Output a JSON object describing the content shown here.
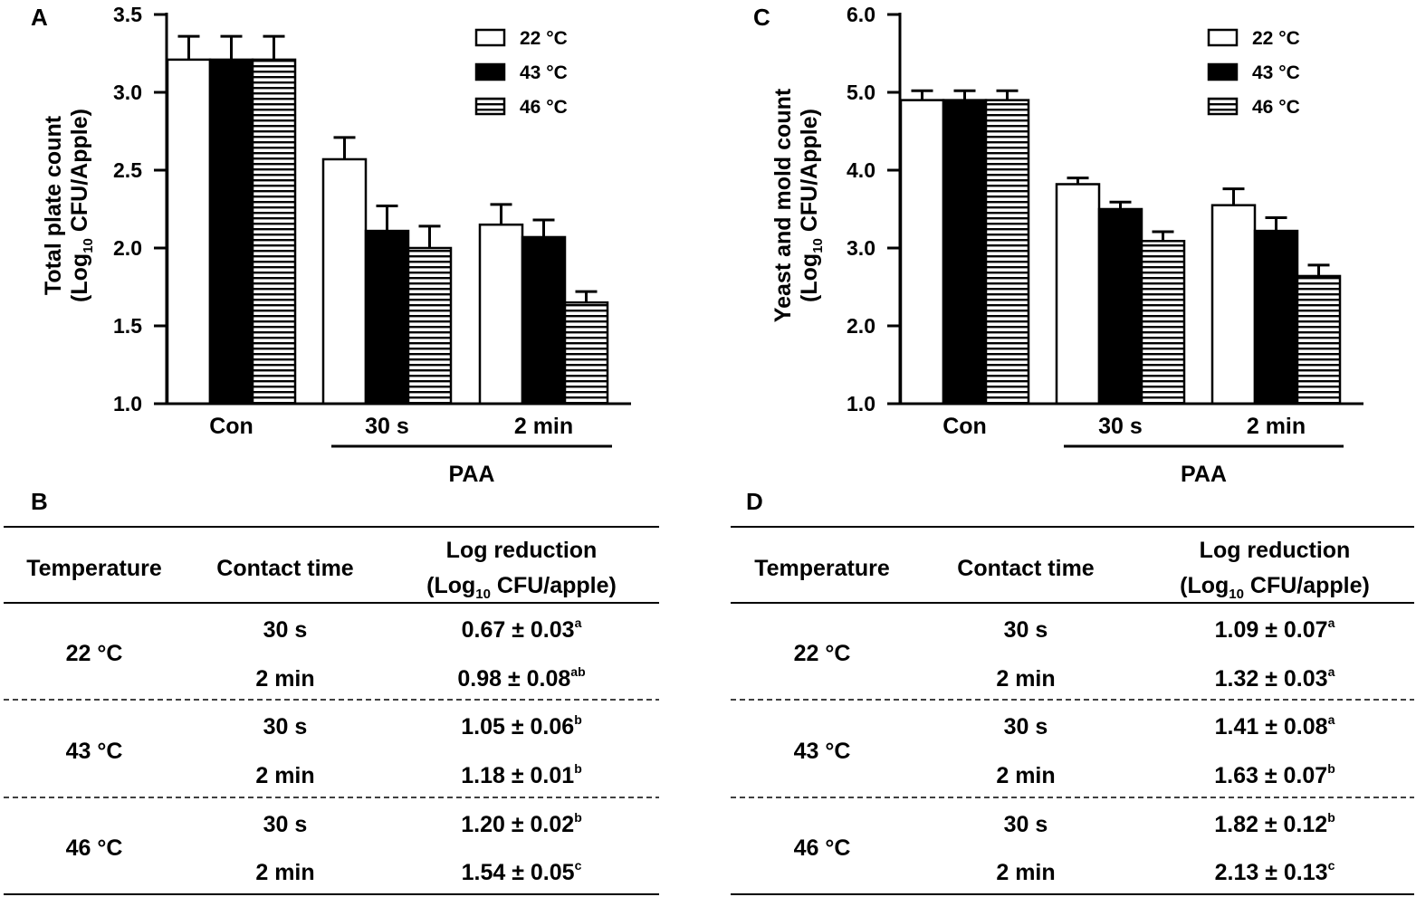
{
  "chart_data": [
    {
      "panel": "A",
      "type": "bar",
      "categories": [
        "Con",
        "30 s",
        "2 min"
      ],
      "group_label": "PAA",
      "ylabel_line1": "Total plate count",
      "ylabel_line2_prefix": "(Log",
      "ylabel_line2_sub": "10",
      "ylabel_line2_suffix": " CFU/Apple)",
      "ylim": [
        1.0,
        3.5
      ],
      "yticks": [
        1.0,
        1.5,
        2.0,
        2.5,
        3.0,
        3.5
      ],
      "ytick_labels": [
        "1.0",
        "1.5",
        "2.0",
        "2.5",
        "3.0",
        "3.5"
      ],
      "series": [
        {
          "name": "22 °C",
          "values": [
            3.21,
            2.57,
            2.15
          ],
          "errors": [
            0.15,
            0.14,
            0.13
          ]
        },
        {
          "name": "43 °C",
          "values": [
            3.21,
            2.11,
            2.07
          ],
          "errors": [
            0.15,
            0.16,
            0.11
          ]
        },
        {
          "name": "46 °C",
          "values": [
            3.21,
            2.0,
            1.65
          ],
          "errors": [
            0.15,
            0.14,
            0.07
          ]
        }
      ]
    },
    {
      "panel": "C",
      "type": "bar",
      "categories": [
        "Con",
        "30 s",
        "2 min"
      ],
      "group_label": "PAA",
      "ylabel_line1": "Yeast and mold count",
      "ylabel_line2_prefix": "(Log",
      "ylabel_line2_sub": "10",
      "ylabel_line2_suffix": " CFU/Apple)",
      "ylim": [
        1.0,
        6.0
      ],
      "yticks": [
        1.0,
        2.0,
        3.0,
        4.0,
        5.0,
        6.0
      ],
      "ytick_labels": [
        "1.0",
        "2.0",
        "3.0",
        "4.0",
        "5.0",
        "6.0"
      ],
      "series": [
        {
          "name": "22 °C",
          "values": [
            4.9,
            3.82,
            3.55
          ],
          "errors": [
            0.12,
            0.08,
            0.21
          ]
        },
        {
          "name": "43 °C",
          "values": [
            4.9,
            3.5,
            3.22
          ],
          "errors": [
            0.12,
            0.09,
            0.17
          ]
        },
        {
          "name": "46 °C",
          "values": [
            4.9,
            3.09,
            2.64
          ],
          "errors": [
            0.12,
            0.12,
            0.14
          ]
        }
      ]
    }
  ],
  "tables": [
    {
      "panel": "B",
      "headers": {
        "temperature": "Temperature",
        "contact_time": "Contact time",
        "log_line1": "Log reduction",
        "log_line2_prefix": "(Log",
        "log_line2_sub": "10",
        "log_line2_suffix": " CFU/apple)"
      },
      "groups": [
        {
          "temperature": "22 °C",
          "rows": [
            {
              "time": "30 s",
              "value": "0.67 ± 0.03",
              "sup": "a"
            },
            {
              "time": "2 min",
              "value": "0.98 ± 0.08",
              "sup": "ab"
            }
          ]
        },
        {
          "temperature": "43 °C",
          "rows": [
            {
              "time": "30 s",
              "value": "1.05 ± 0.06",
              "sup": "b"
            },
            {
              "time": "2 min",
              "value": "1.18 ± 0.01",
              "sup": "b"
            }
          ]
        },
        {
          "temperature": "46 °C",
          "rows": [
            {
              "time": "30 s",
              "value": "1.20 ± 0.02",
              "sup": "b"
            },
            {
              "time": "2 min",
              "value": "1.54 ± 0.05",
              "sup": "c"
            }
          ]
        }
      ]
    },
    {
      "panel": "D",
      "headers": {
        "temperature": "Temperature",
        "contact_time": "Contact time",
        "log_line1": "Log reduction",
        "log_line2_prefix": "(Log",
        "log_line2_sub": "10",
        "log_line2_suffix": " CFU/apple)"
      },
      "groups": [
        {
          "temperature": "22 °C",
          "rows": [
            {
              "time": "30 s",
              "value": "1.09 ± 0.07",
              "sup": "a"
            },
            {
              "time": "2 min",
              "value": "1.32 ± 0.03",
              "sup": "a"
            }
          ]
        },
        {
          "temperature": "43 °C",
          "rows": [
            {
              "time": "30 s",
              "value": "1.41 ± 0.08",
              "sup": "a"
            },
            {
              "time": "2 min",
              "value": "1.63 ± 0.07",
              "sup": "b"
            }
          ]
        },
        {
          "temperature": "46 °C",
          "rows": [
            {
              "time": "30 s",
              "value": "1.82 ± 0.12",
              "sup": "b"
            },
            {
              "time": "2 min",
              "value": "2.13 ± 0.13",
              "sup": "c"
            }
          ]
        }
      ]
    }
  ],
  "colors": {
    "ink": "#000000",
    "paper": "#ffffff"
  }
}
